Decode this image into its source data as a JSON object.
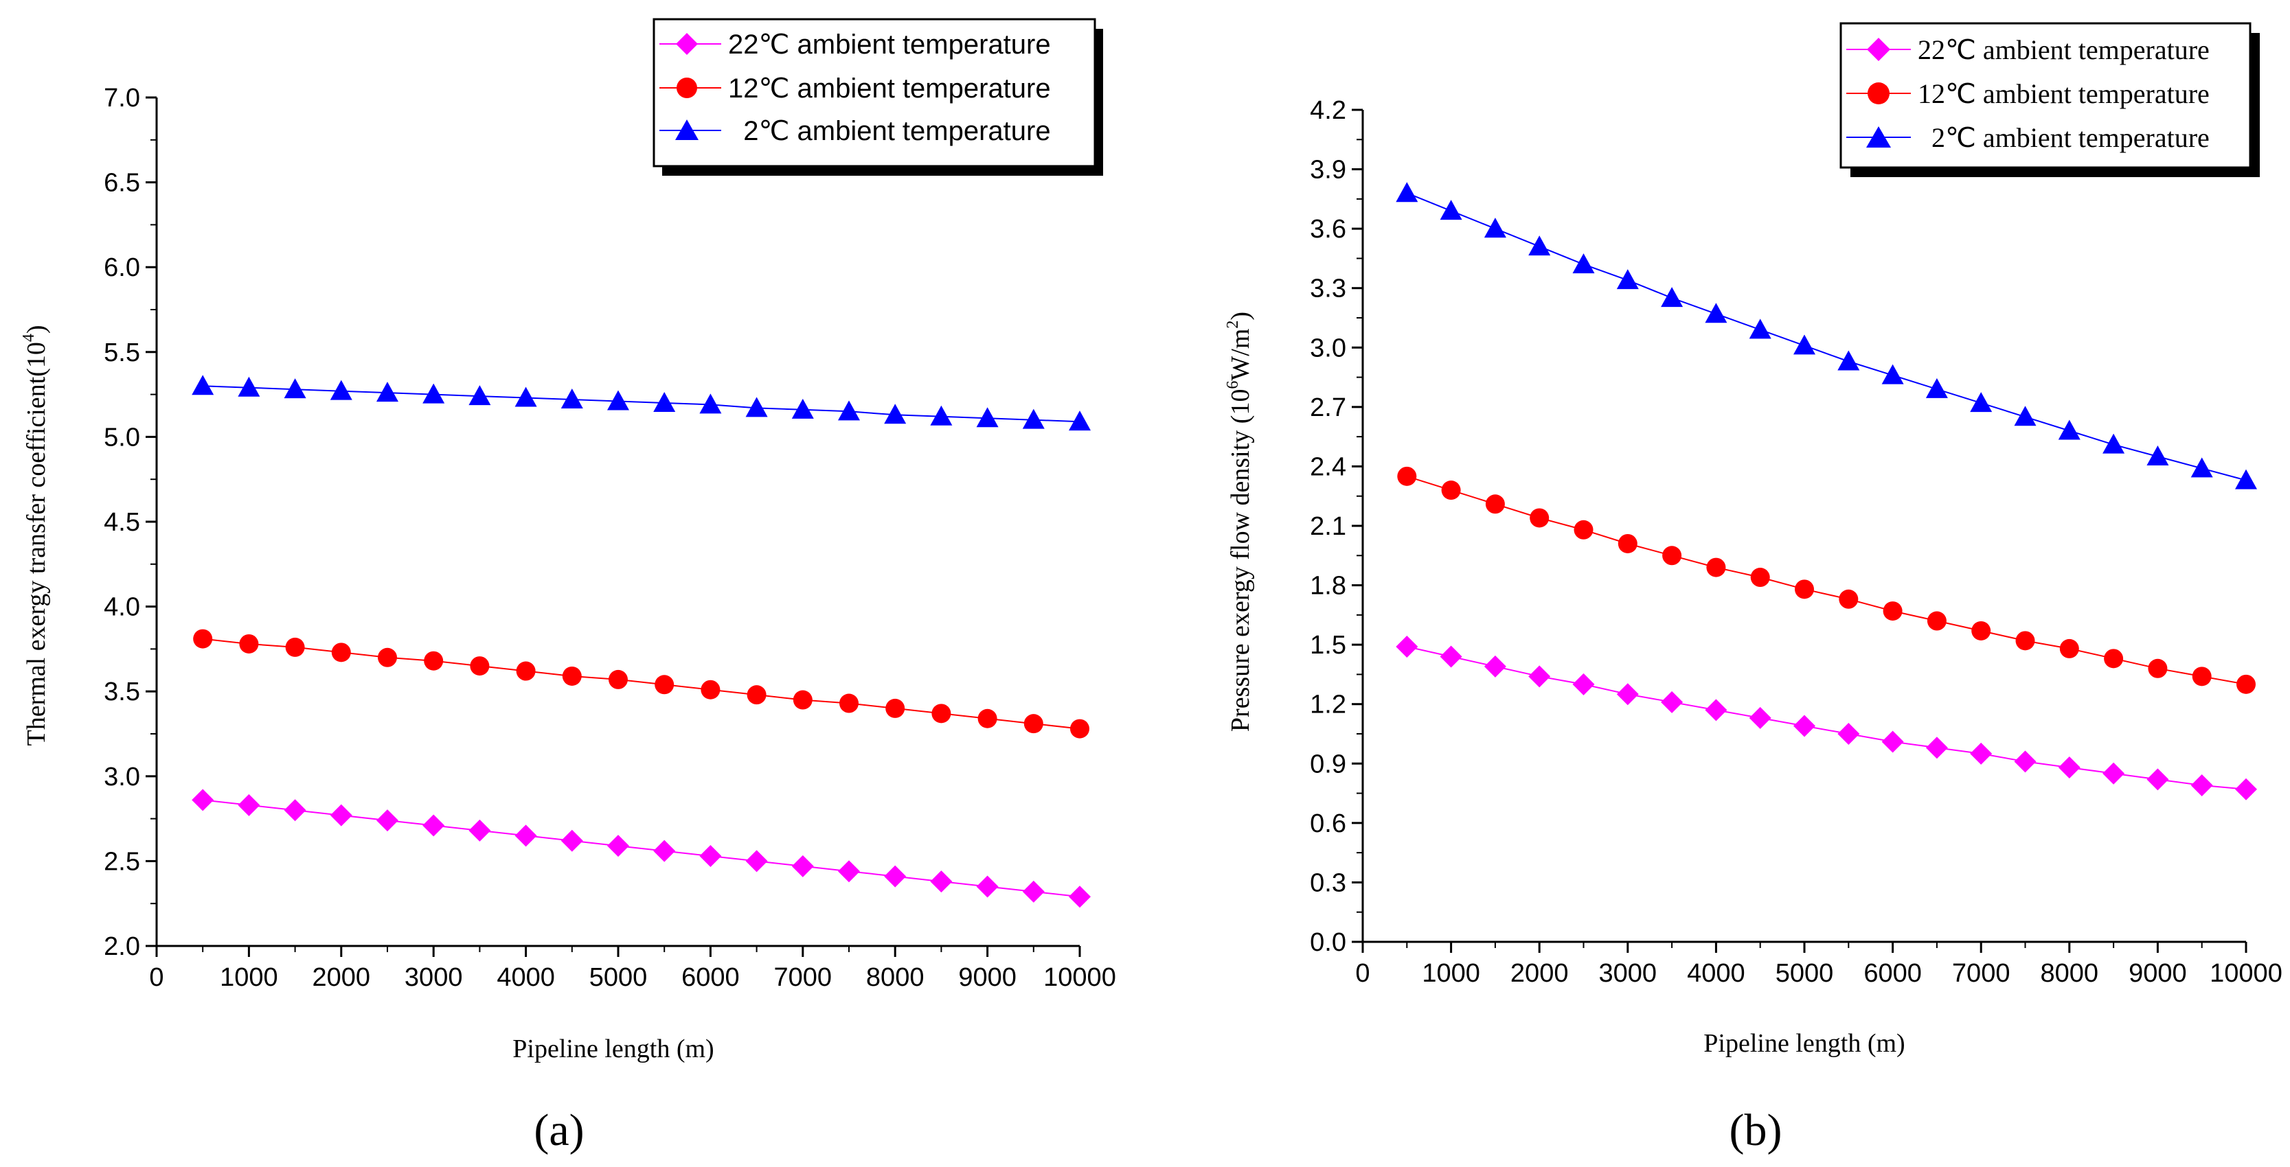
{
  "colors": {
    "magenta": "#ff00ff",
    "red": "#ff0000",
    "blue": "#0000ff",
    "axis": "#000000"
  },
  "chart_data": [
    {
      "type": "line",
      "panel_label": "(a)",
      "xlabel": "Pipeline length (m)",
      "ylabel": "Thermal exergy transfer coefficient(10",
      "ylabel_sup": "4",
      "ylabel_end": ")",
      "xlim": [
        0,
        10000
      ],
      "ylim": [
        2.0,
        7.0
      ],
      "xticks": [
        "0",
        "1000",
        "2000",
        "3000",
        "4000",
        "5000",
        "6000",
        "7000",
        "8000",
        "9000",
        "10000"
      ],
      "yticks": [
        "2.0",
        "2.5",
        "3.0",
        "3.5",
        "4.0",
        "4.5",
        "5.0",
        "5.5",
        "6.0",
        "6.5",
        "7.0"
      ],
      "x": [
        500,
        1000,
        1500,
        2000,
        2500,
        3000,
        3500,
        4000,
        4500,
        5000,
        5500,
        6000,
        6500,
        7000,
        7500,
        8000,
        8500,
        9000,
        9500,
        10000
      ],
      "series": [
        {
          "name": "22℃ ambient temperature",
          "marker": "diamond",
          "color": "#ff00ff",
          "values": [
            2.86,
            2.83,
            2.8,
            2.77,
            2.74,
            2.71,
            2.68,
            2.65,
            2.62,
            2.59,
            2.56,
            2.53,
            2.5,
            2.47,
            2.44,
            2.41,
            2.38,
            2.35,
            2.32,
            2.29
          ]
        },
        {
          "name": "12℃ ambient temperature",
          "marker": "circle",
          "color": "#ff0000",
          "values": [
            3.81,
            3.78,
            3.76,
            3.73,
            3.7,
            3.68,
            3.65,
            3.62,
            3.59,
            3.57,
            3.54,
            3.51,
            3.48,
            3.45,
            3.43,
            3.4,
            3.37,
            3.34,
            3.31,
            3.28
          ]
        },
        {
          "name": "  2℃ ambient temperature",
          "marker": "triangle",
          "color": "#0000ff",
          "values": [
            5.3,
            5.29,
            5.28,
            5.27,
            5.26,
            5.25,
            5.24,
            5.23,
            5.22,
            5.21,
            5.2,
            5.19,
            5.17,
            5.16,
            5.15,
            5.13,
            5.12,
            5.11,
            5.1,
            5.09
          ]
        }
      ]
    },
    {
      "type": "line",
      "panel_label": "(b)",
      "xlabel": "Pipeline length (m)",
      "ylabel": "Pressure exergy flow density (10",
      "ylabel_sup": "6",
      "ylabel_mid": "W/m",
      "ylabel_sup2": "2",
      "ylabel_end": ")",
      "xlim": [
        0,
        10000
      ],
      "ylim": [
        0.0,
        4.2
      ],
      "xticks": [
        "0",
        "1000",
        "2000",
        "3000",
        "4000",
        "5000",
        "6000",
        "7000",
        "8000",
        "9000",
        "10000"
      ],
      "yticks": [
        "0.0",
        "0.3",
        "0.6",
        "0.9",
        "1.2",
        "1.5",
        "1.8",
        "2.1",
        "2.4",
        "2.7",
        "3.0",
        "3.3",
        "3.6",
        "3.9",
        "4.2"
      ],
      "x": [
        500,
        1000,
        1500,
        2000,
        2500,
        3000,
        3500,
        4000,
        4500,
        5000,
        5500,
        6000,
        6500,
        7000,
        7500,
        8000,
        8500,
        9000,
        9500,
        10000
      ],
      "series": [
        {
          "name": "22℃ ambient temperature",
          "marker": "diamond",
          "color": "#ff00ff",
          "values": [
            1.49,
            1.44,
            1.39,
            1.34,
            1.3,
            1.25,
            1.21,
            1.17,
            1.13,
            1.09,
            1.05,
            1.01,
            0.98,
            0.95,
            0.91,
            0.88,
            0.85,
            0.82,
            0.79,
            0.77
          ]
        },
        {
          "name": "12℃ ambient temperature",
          "marker": "circle",
          "color": "#ff0000",
          "values": [
            2.35,
            2.28,
            2.21,
            2.14,
            2.08,
            2.01,
            1.95,
            1.89,
            1.84,
            1.78,
            1.73,
            1.67,
            1.62,
            1.57,
            1.52,
            1.48,
            1.43,
            1.38,
            1.34,
            1.3
          ]
        },
        {
          "name": "  2℃ ambient temperature",
          "marker": "triangle",
          "color": "#0000ff",
          "values": [
            3.78,
            3.69,
            3.6,
            3.51,
            3.42,
            3.34,
            3.25,
            3.17,
            3.09,
            3.01,
            2.93,
            2.86,
            2.79,
            2.72,
            2.65,
            2.58,
            2.51,
            2.45,
            2.39,
            2.33
          ]
        }
      ]
    }
  ]
}
